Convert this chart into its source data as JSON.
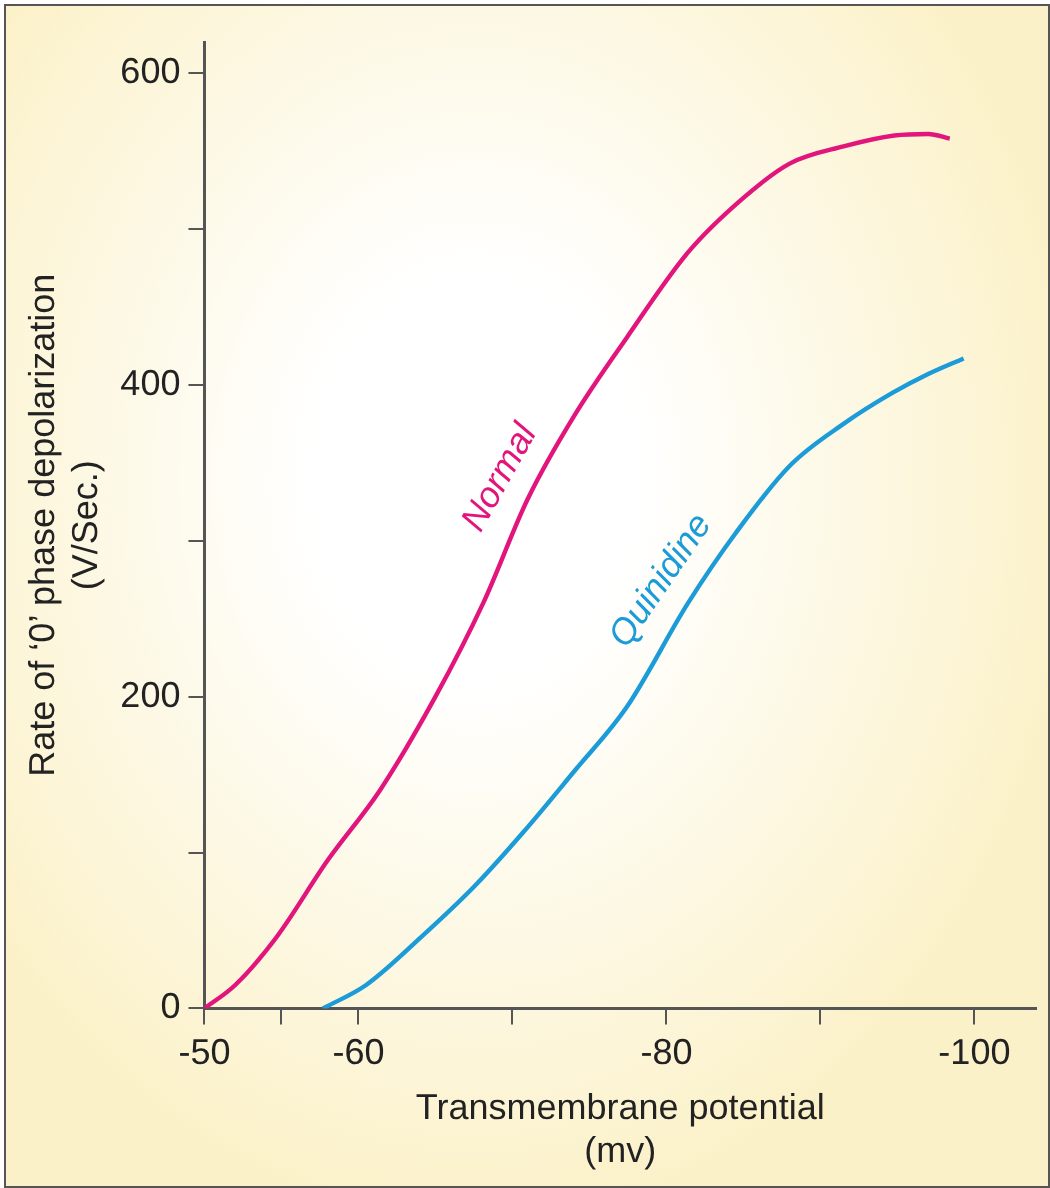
{
  "chart_data": {
    "type": "line",
    "xlabel": "Transmembrane potential\n(mv)",
    "ylabel": "Rate of ‘0’ phase depolarization\n(V/Sec.)",
    "xlim": [
      -50,
      -104
    ],
    "ylim": [
      0,
      620
    ],
    "xticks": [
      -50,
      {
        "value": -55,
        "label": null
      },
      -60,
      {
        "value": -70,
        "label": null
      },
      -80,
      {
        "value": -90,
        "label": null
      },
      -100
    ],
    "yticks": [
      0,
      {
        "value": 100,
        "label": null
      },
      200,
      {
        "value": 300,
        "label": null
      },
      400,
      {
        "value": 500,
        "label": null
      },
      600
    ],
    "grid": false,
    "legend": false,
    "marker": "none",
    "line_style": "solid",
    "series": [
      {
        "name": "Normal",
        "color": "#e2157c",
        "x": [
          -50,
          -52,
          -54.7,
          -58,
          -61.4,
          -65,
          -68.1,
          -71,
          -74,
          -77.4,
          -81.4,
          -85,
          -88,
          -91.5,
          -94.8,
          -97,
          -98.4
        ],
        "values": [
          0,
          15,
          46,
          95,
          140,
          200,
          260,
          327,
          380,
          430,
          485,
          520,
          542,
          553,
          560,
          561,
          558
        ]
      },
      {
        "name": "Quinidine",
        "color": "#1b9bd7",
        "x": [
          -57.7,
          -60.5,
          -64.1,
          -67.5,
          -70.7,
          -74,
          -77.4,
          -81.4,
          -84.5,
          -88,
          -91.5,
          -94.7,
          -97,
          -99.3
        ],
        "values": [
          0,
          15,
          46,
          78,
          113,
          152,
          193,
          260,
          305,
          348,
          375,
          395,
          407,
          417
        ]
      }
    ]
  }
}
